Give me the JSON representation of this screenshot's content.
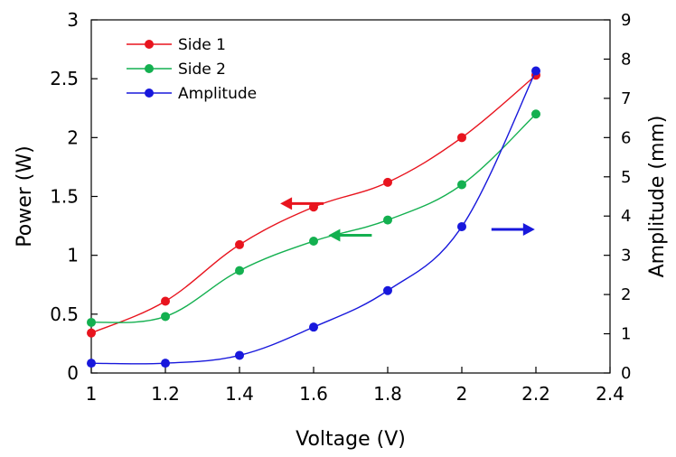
{
  "chart_data": {
    "type": "line",
    "xlabel": "Voltage (V)",
    "ylabel": "Power (W)",
    "y2label": "Amplitude (mm)",
    "xlim": [
      1,
      2.4
    ],
    "ylim": [
      0,
      3
    ],
    "y2lim": [
      0,
      9
    ],
    "xticks": [
      "1",
      "1.2",
      "1.4",
      "1.6",
      "1.8",
      "2",
      "2.2",
      "2.4"
    ],
    "yticks": [
      "0",
      "0.5",
      "1",
      "1.5",
      "2",
      "2.5",
      "3"
    ],
    "y2ticks": [
      "0",
      "1",
      "2",
      "3",
      "4",
      "5",
      "6",
      "7",
      "8",
      "9"
    ],
    "grid": false,
    "legend_position": "top-left",
    "series": [
      {
        "name": "Side 1",
        "axis": "left",
        "color": "#e8141e",
        "x": [
          1,
          1.2,
          1.4,
          1.6,
          1.8,
          2,
          2.2
        ],
        "y": [
          0.34,
          0.61,
          1.09,
          1.41,
          1.62,
          2.0,
          2.53
        ]
      },
      {
        "name": "Side 2",
        "axis": "left",
        "color": "#14b050",
        "x": [
          1,
          1.2,
          1.4,
          1.6,
          1.8,
          2,
          2.2
        ],
        "y": [
          0.43,
          0.48,
          0.87,
          1.12,
          1.3,
          1.6,
          2.2
        ]
      },
      {
        "name": "Amplitude",
        "axis": "right",
        "color": "#1818dc",
        "x": [
          1,
          1.2,
          1.4,
          1.6,
          1.8,
          2,
          2.2
        ],
        "y": [
          0.25,
          0.25,
          0.45,
          1.17,
          2.1,
          3.73,
          7.7
        ]
      }
    ],
    "annotations": [
      {
        "type": "arrow",
        "series": "Side 1",
        "direction": "left",
        "x": 1.51,
        "y": 1.44
      },
      {
        "type": "arrow",
        "series": "Side 2",
        "direction": "left",
        "x": 1.64,
        "y": 1.17
      },
      {
        "type": "arrow",
        "series": "Amplitude",
        "direction": "right",
        "x": 2.08,
        "y2": 3.66
      }
    ]
  }
}
